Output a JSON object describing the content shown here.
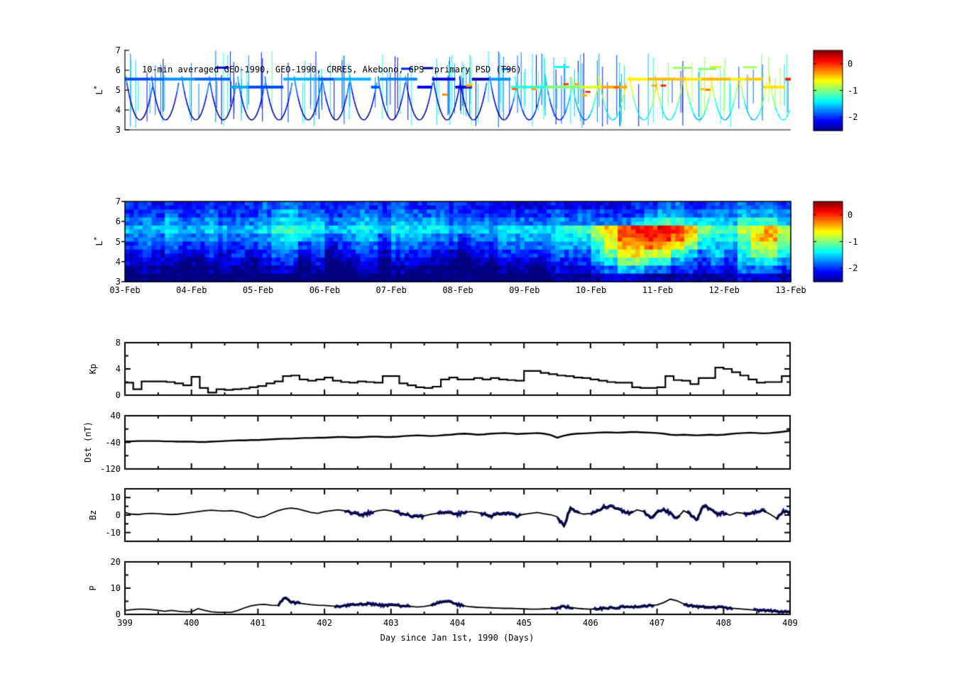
{
  "xaxis": {
    "label": "Day since Jan 1st, 1990 (Days)",
    "ticks": [
      399,
      400,
      401,
      402,
      403,
      404,
      405,
      406,
      407,
      408,
      409
    ],
    "lim": [
      399,
      409
    ],
    "minor_step": 0.5
  },
  "chart_data": [
    {
      "type": "scatter",
      "title": "10-min averaged GEO-1990, GEO-1990, CRRES, Akebono, GPS  primary PSD (T96)",
      "ylabel": "L",
      "ylabel_sup": "*",
      "ylim": [
        3,
        7
      ],
      "yticks": [
        3,
        4,
        5,
        6,
        7
      ],
      "xlim": [
        399,
        409
      ],
      "colorbar": {
        "ticks": [
          0,
          -1,
          -2
        ],
        "min": -2.5,
        "max": 0.5
      },
      "geo_band": {
        "levels": [
          5.15,
          5.55
        ],
        "psd_trend": [
          [
            399,
            -1.95
          ],
          [
            400,
            -1.9
          ],
          [
            401,
            -1.85
          ],
          [
            402,
            -1.8
          ],
          [
            403,
            -1.95
          ],
          [
            403.8,
            -2.1
          ],
          [
            404.3,
            -2.35
          ],
          [
            404.7,
            -1.6
          ],
          [
            405,
            -1.2
          ],
          [
            405.3,
            -1.5
          ],
          [
            405.8,
            -0.9
          ],
          [
            406.2,
            -0.5
          ],
          [
            406.6,
            -0.35
          ],
          [
            407,
            -0.3
          ],
          [
            407.4,
            -0.55
          ],
          [
            407.8,
            -0.5
          ],
          [
            408.2,
            -0.65
          ],
          [
            408.6,
            -0.45
          ],
          [
            409,
            -0.15
          ]
        ]
      },
      "crres": {
        "period_days": 0.42,
        "l_min": 3.5,
        "l_max": 5.7
      },
      "spikes": {
        "count": 150,
        "l_top_min": 5.3,
        "l_top_span": 1.7,
        "l_bot_min": 3.1,
        "l_bot_span": 1.3
      },
      "upper_segments": {
        "count": 9,
        "l_level": 6.1
      },
      "warm_outliers": {
        "count": 14,
        "x_min": 403.5,
        "l_min": 4.7,
        "l_span": 0.6
      }
    },
    {
      "type": "heatmap",
      "ylabel": "L",
      "ylabel_sup": "*",
      "ylim": [
        3,
        7
      ],
      "yticks": [
        3,
        4,
        5,
        6,
        7
      ],
      "xlim": [
        399,
        409
      ],
      "x_tick_labels": [
        "03-Feb",
        "04-Feb",
        "05-Feb",
        "06-Feb",
        "07-Feb",
        "08-Feb",
        "09-Feb",
        "10-Feb",
        "11-Feb",
        "12-Feb",
        "13-Feb"
      ],
      "colorbar": {
        "ticks": [
          0,
          -1,
          -2
        ],
        "min": -2.5,
        "max": 0.5
      },
      "grid_encoding": "each char 0-f maps to log10 PSD = -2.6 + index*0.2; rows ordered top (L=6.6-7) to bottom (L=3-3.4); 50 columns spanning days 399-409",
      "grid": [
        "33232333334443333333433333232222322222334433334443",
        "33343343334554433443444433333333434333345544445554",
        "44454454445665544554555544444444544444567766557775",
        "5556556555677665566566665555666667 79bcddedb8779ab9",
        "4445445444566553455355544344555566 68accddca7668bb8",
        "34343343334553423442444332334444555 79bbcba86557997",
        "23232232323442312331333221223333444 68aa99764546886",
        "22221122212331201220222110112222333 56887754343566 5",
        "11110011101220100110111000001111222 34554433232444 3",
        "00000000000000000000000000000000011 11222111111222 1"
      ],
      "grid_rows_clean": [
        "33232333334443333333433333232222322222334433334443",
        "33343343334554433443444433333333434333345544445554",
        "44454454445665544554555544444444544444567766557775",
        "555655655567766556656666555566666779bcddedb8779ab9",
        "444544544456655345535554434455556668accddca7668bb8",
        "343433433345534234424443323344445557 9bbcba86557997",
        "232322323234423123313332212233334446 8aa99764546886",
        "222211222123312012202221101122223335 6887754343 5665",
        "111100111012201001101110000011112223 4554433232 4443",
        "000000000000000000000000000000001111 2221111111 2221"
      ]
    },
    {
      "type": "step",
      "ylabel": "Kp",
      "ylim": [
        0,
        8
      ],
      "yticks": [
        0,
        4,
        8
      ],
      "yticks_minor": [
        2,
        6
      ],
      "x_start": 399,
      "x_step": 0.125,
      "values": [
        1.9,
        0.9,
        2.1,
        2.1,
        2.1,
        2.0,
        1.8,
        1.5,
        2.8,
        1.1,
        0.4,
        0.9,
        0.8,
        0.9,
        1.0,
        1.2,
        1.4,
        1.8,
        2.1,
        2.9,
        3.0,
        2.4,
        2.2,
        2.4,
        2.7,
        2.2,
        2.0,
        1.9,
        2.1,
        2.0,
        1.9,
        2.9,
        2.9,
        1.8,
        1.5,
        1.2,
        1.1,
        1.3,
        2.4,
        2.7,
        2.4,
        2.4,
        2.6,
        2.4,
        2.6,
        2.4,
        2.3,
        2.2,
        3.7,
        3.7,
        3.4,
        3.2,
        3.0,
        2.9,
        2.7,
        2.6,
        2.4,
        2.2,
        2.0,
        1.9,
        1.9,
        1.2,
        1.1,
        1.1,
        1.2,
        2.9,
        2.3,
        2.2,
        1.7,
        2.6,
        2.6,
        4.2,
        4.0,
        3.5,
        3.0,
        2.4,
        1.9,
        2.0,
        2.0,
        2.9
      ]
    },
    {
      "type": "line",
      "ylabel": "Dst (nT)",
      "ylim": [
        -120,
        40
      ],
      "yticks": [
        -120,
        -40,
        40
      ],
      "yticks_minor": [
        -80,
        0
      ],
      "x_start": 399,
      "x_step": 0.1,
      "values": [
        -37,
        -37,
        -36,
        -36,
        -36,
        -36,
        -37,
        -37,
        -38,
        -38,
        -38,
        -39,
        -39,
        -38,
        -37,
        -36,
        -35,
        -34,
        -34,
        -33,
        -33,
        -32,
        -31,
        -30,
        -29,
        -29,
        -28,
        -27,
        -27,
        -26,
        -26,
        -25,
        -24,
        -24,
        -25,
        -25,
        -24,
        -23,
        -23,
        -24,
        -24,
        -23,
        -21,
        -20,
        -19,
        -20,
        -21,
        -20,
        -18,
        -17,
        -15,
        -14,
        -15,
        -17,
        -16,
        -14,
        -13,
        -12,
        -13,
        -15,
        -14,
        -13,
        -12,
        -14,
        -18,
        -26,
        -20,
        -16,
        -14,
        -13,
        -12,
        -11,
        -10,
        -10,
        -11,
        -10,
        -9,
        -9,
        -10,
        -11,
        -12,
        -14,
        -17,
        -18,
        -17,
        -18,
        -19,
        -18,
        -17,
        -18,
        -17,
        -15,
        -13,
        -12,
        -11,
        -12,
        -13,
        -12,
        -10,
        -8,
        -5
      ]
    },
    {
      "type": "line",
      "ylabel": "Bz",
      "ylim": [
        -15,
        15
      ],
      "yticks": [
        -10,
        0,
        10
      ],
      "yticks_minor": [
        -5,
        5
      ],
      "x_start": 399,
      "x_step": 0.1,
      "highlight_color": "#17178f",
      "highlight_noise": 0.9,
      "highlight_segments": [
        [
          402.3,
          402.75
        ],
        [
          403.05,
          403.5
        ],
        [
          403.7,
          404.15
        ],
        [
          404.35,
          404.95
        ],
        [
          405.5,
          405.85
        ],
        [
          406.0,
          406.65
        ],
        [
          406.8,
          407.35
        ],
        [
          407.45,
          408.05
        ],
        [
          408.3,
          408.65
        ],
        [
          408.8,
          409.0
        ]
      ],
      "values": [
        1.5,
        0.5,
        0.3,
        0.8,
        1.0,
        0.8,
        0.5,
        0.3,
        0.5,
        1.0,
        1.5,
        2.0,
        2.5,
        2.8,
        2.5,
        2.3,
        2.5,
        2.0,
        1.0,
        -0.5,
        -1.5,
        -0.8,
        1.0,
        2.5,
        3.5,
        4.0,
        3.5,
        2.5,
        1.5,
        1.0,
        2.0,
        2.5,
        3.0,
        2.5,
        1.5,
        0.5,
        0.3,
        1.5,
        2.5,
        3.0,
        2.5,
        1.5,
        0.5,
        -0.5,
        -1.0,
        -0.5,
        0.5,
        1.0,
        1.5,
        1.0,
        0.5,
        1.5,
        2.0,
        1.5,
        0.5,
        -0.8,
        0.5,
        1.5,
        0.5,
        -0.5,
        0.5,
        1.0,
        1.5,
        0.8,
        0.2,
        -1.0,
        -6.5,
        4.5,
        1.5,
        0.5,
        1.0,
        2.0,
        4.5,
        5.0,
        3.5,
        2.0,
        1.0,
        3.0,
        2.0,
        -1.5,
        1.5,
        3.0,
        1.0,
        -2.0,
        2.5,
        0.5,
        -2.5,
        5.5,
        3.5,
        0.5,
        1.0,
        0.0,
        1.5,
        1.0,
        0.5,
        2.0,
        2.5,
        0.5,
        -2.0,
        2.0,
        1.5
      ]
    },
    {
      "type": "line",
      "ylabel": "P",
      "ylim": [
        0,
        20
      ],
      "yticks": [
        0,
        10,
        20
      ],
      "yticks_minor": [
        5,
        15
      ],
      "x_start": 399,
      "x_step": 0.1,
      "highlight_color": "#17178f",
      "highlight_noise": 0.45,
      "highlight_segments": [
        [
          401.3,
          401.65
        ],
        [
          402.15,
          403.3
        ],
        [
          403.6,
          404.1
        ],
        [
          405.4,
          405.75
        ],
        [
          406.05,
          406.95
        ],
        [
          407.4,
          408.15
        ],
        [
          408.45,
          409.0
        ]
      ],
      "values": [
        1.5,
        1.8,
        2.0,
        2.0,
        1.8,
        1.5,
        1.2,
        1.5,
        1.2,
        1.0,
        1.0,
        2.2,
        1.5,
        1.0,
        0.8,
        0.8,
        0.8,
        1.5,
        2.5,
        3.3,
        3.7,
        3.8,
        3.5,
        3.4,
        6.3,
        4.8,
        4.3,
        4.0,
        3.7,
        3.5,
        3.4,
        3.2,
        3.1,
        3.3,
        3.6,
        3.8,
        4.0,
        3.9,
        3.6,
        3.4,
        3.5,
        3.4,
        3.2,
        3.0,
        2.8,
        3.0,
        3.5,
        4.2,
        5.0,
        4.6,
        3.8,
        3.2,
        2.9,
        2.7,
        2.6,
        2.5,
        2.4,
        2.3,
        2.3,
        2.2,
        2.1,
        2.0,
        2.0,
        2.1,
        2.2,
        2.6,
        3.0,
        2.6,
        2.3,
        2.1,
        2.0,
        2.1,
        2.3,
        2.5,
        2.6,
        2.8,
        2.9,
        3.0,
        3.2,
        3.4,
        3.6,
        4.5,
        5.8,
        5.2,
        4.0,
        3.3,
        3.0,
        2.9,
        2.8,
        2.7,
        2.6,
        2.4,
        2.2,
        2.0,
        1.8,
        1.6,
        1.5,
        1.4,
        1.2,
        1.0,
        0.8
      ]
    }
  ]
}
